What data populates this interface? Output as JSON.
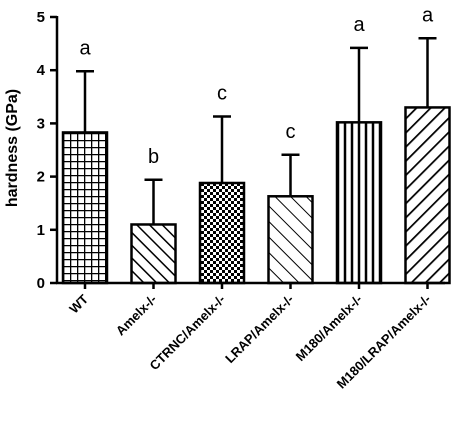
{
  "chart_data": {
    "type": "bar",
    "categories": [
      "WT",
      "Amelx-/-",
      "CTRNC/Amelx-/-",
      "LRAP/Amelx-/-",
      "M180/Amelx-/-",
      "M180/LRAP/Amelx-/-"
    ],
    "values": [
      2.83,
      1.1,
      1.88,
      1.63,
      3.02,
      3.3
    ],
    "error_upper": [
      3.98,
      1.94,
      3.13,
      2.41,
      4.42,
      4.6
    ],
    "significance_letters": [
      "a",
      "b",
      "c",
      "c",
      "a",
      "a"
    ],
    "patterns": [
      "grid",
      "diagonal-back",
      "checker",
      "diagonal-back-sparse",
      "vertical",
      "diagonal-forward"
    ],
    "ylabel": "hardness (GPa)",
    "xlabel": "",
    "title": "",
    "ylim": [
      0,
      5
    ],
    "yticks": [
      "0",
      "1",
      "2",
      "3",
      "4",
      "5"
    ],
    "grid": false,
    "colors": {
      "bar_fill": "#ffffff",
      "stroke": "#000000"
    }
  }
}
